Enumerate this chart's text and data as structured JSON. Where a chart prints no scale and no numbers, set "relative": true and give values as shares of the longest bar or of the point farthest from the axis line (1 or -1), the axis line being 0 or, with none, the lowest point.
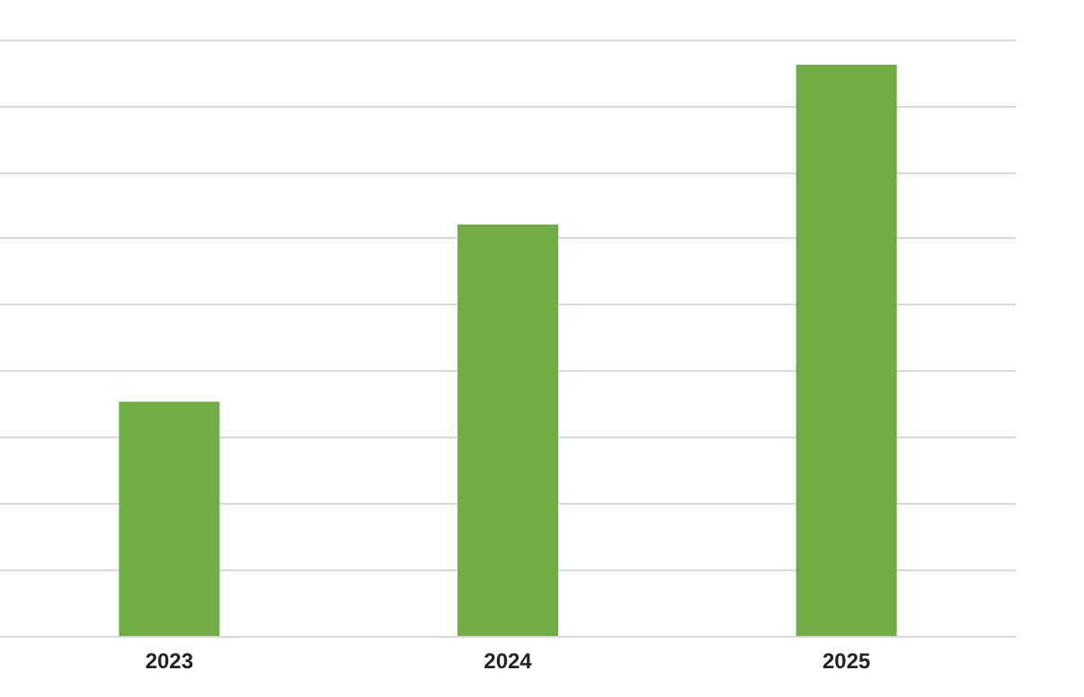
{
  "chart_data": {
    "type": "bar",
    "relative": true,
    "categories": [
      "2023",
      "2024",
      "2025"
    ],
    "values": [
      0.41,
      0.72,
      1
    ],
    "color": "#70ad47",
    "grid": "y"
  }
}
